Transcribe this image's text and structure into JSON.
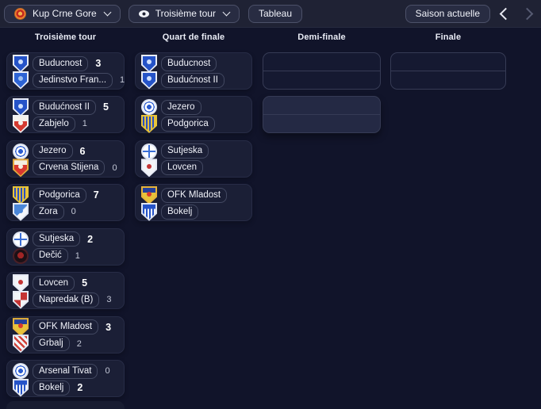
{
  "topbar": {
    "competition_selector": {
      "label": "Kup Crne Gore"
    },
    "round_selector": {
      "label": "Troisième tour"
    },
    "table_button": "Tableau",
    "season_button": "Saison actuelle",
    "prev_enabled": true,
    "next_enabled": false
  },
  "colors": {
    "page_bg": "#11142a",
    "topbar_bg": "#1f2234",
    "card_bg": "#1b1f36",
    "pill_border": "#424861",
    "empty_highlight_bg": "#242944",
    "winner_score": "#ffffff",
    "loser_score": "#c3c7d6"
  },
  "badges": {
    "buducnost": {
      "shape": "shield",
      "outline": "#e9edf8",
      "pattern": "solid",
      "colors": [
        "#2553c8",
        "#cfe0ff"
      ],
      "dot": "#cfe0ff"
    },
    "jedinstvo": {
      "shape": "shield",
      "outline": "#e9edf8",
      "pattern": "solid",
      "colors": [
        "#2d63d4",
        "#9fc0f0"
      ],
      "dot": "#9fc0f0"
    },
    "zabjelo": {
      "shape": "shield",
      "outline": "#f0f0f2",
      "pattern": "band-top",
      "colors": [
        "#d43a31",
        "#f5f2ee"
      ],
      "dot": "#f5f2ee"
    },
    "jezero": {
      "shape": "circle",
      "outline": "#dfe5f2",
      "pattern": "ring-dot",
      "colors": [
        "#ffffff",
        "#2b5cd0"
      ]
    },
    "crvena_stijena": {
      "shape": "shield",
      "outline": "#e2a83c",
      "pattern": "band-top",
      "colors": [
        "#d8382f",
        "#f3efe2"
      ],
      "dot": "#f3efe2"
    },
    "podgorica": {
      "shape": "shield",
      "outline": "#e7c33a",
      "pattern": "stripes-v",
      "colors": [
        "#e7c33a",
        "#2b4fc0"
      ]
    },
    "zora": {
      "shape": "shield",
      "outline": "#dfe5f2",
      "pattern": "half-diag",
      "colors": [
        "#f4f6fb",
        "#4a86d8"
      ],
      "dot": "#4a86d8"
    },
    "sutjeska": {
      "shape": "circle",
      "outline": "#dfe5f2",
      "pattern": "globe",
      "colors": [
        "#ffffff",
        "#3b6fd6"
      ]
    },
    "decic": {
      "shape": "circle",
      "outline": "#4a1f26",
      "pattern": "dark-dot",
      "colors": [
        "#1c1016",
        "#a02525"
      ]
    },
    "lovcen": {
      "shape": "shield",
      "outline": "#e5e9f4",
      "pattern": "solid",
      "colors": [
        "#f2f4f8",
        "#c43434"
      ],
      "dot": "#c43434"
    },
    "napredak": {
      "shape": "shield",
      "outline": "#e5e9f4",
      "pattern": "quarter",
      "colors": [
        "#f2f4f8",
        "#c43434"
      ]
    },
    "ofk_mladost": {
      "shape": "shield",
      "outline": "#e7b33a",
      "pattern": "band-top",
      "colors": [
        "#e7c33a",
        "#23409c"
      ],
      "dot": "#d8382f"
    },
    "grbalj": {
      "shape": "shield",
      "outline": "#e5e9f4",
      "pattern": "stripes-diag",
      "colors": [
        "#f2f4f8",
        "#d04038"
      ]
    },
    "arsenal_tivat": {
      "shape": "circle",
      "outline": "#dfe5f2",
      "pattern": "ring-dot",
      "colors": [
        "#ffffff",
        "#2b5cd0"
      ]
    },
    "bokelj": {
      "shape": "shield",
      "outline": "#dfe5f2",
      "pattern": "chief-stripes",
      "colors": [
        "#f2f4f8",
        "#2553c8"
      ]
    }
  },
  "bracket": {
    "rounds": [
      {
        "label": "Troisième tour",
        "matches": [
          {
            "teams": [
              {
                "name": "Buducnost",
                "score": "3",
                "winner": true,
                "badge": "buducnost"
              },
              {
                "name": "Jedinstvo Fran...",
                "score": "1",
                "winner": false,
                "badge": "jedinstvo"
              }
            ]
          },
          {
            "teams": [
              {
                "name": "Budućnost II",
                "score": "5",
                "winner": true,
                "badge": "buducnost"
              },
              {
                "name": "Zabjelo",
                "score": "1",
                "winner": false,
                "badge": "zabjelo"
              }
            ]
          },
          {
            "teams": [
              {
                "name": "Jezero",
                "score": "6",
                "winner": true,
                "badge": "jezero"
              },
              {
                "name": "Crvena Stijena",
                "score": "0",
                "winner": false,
                "badge": "crvena_stijena"
              }
            ]
          },
          {
            "teams": [
              {
                "name": "Podgorica",
                "score": "7",
                "winner": true,
                "badge": "podgorica"
              },
              {
                "name": "Zora",
                "score": "0",
                "winner": false,
                "badge": "zora"
              }
            ]
          },
          {
            "teams": [
              {
                "name": "Sutjeska",
                "score": "2",
                "winner": true,
                "badge": "sutjeska"
              },
              {
                "name": "Dečić",
                "score": "1",
                "winner": false,
                "badge": "decic"
              }
            ]
          },
          {
            "teams": [
              {
                "name": "Lovcen",
                "score": "5",
                "winner": true,
                "badge": "lovcen"
              },
              {
                "name": "Napredak (B)",
                "score": "3",
                "winner": false,
                "badge": "napredak"
              }
            ]
          },
          {
            "teams": [
              {
                "name": "OFK Mladost",
                "score": "3",
                "winner": true,
                "badge": "ofk_mladost"
              },
              {
                "name": "Grbalj",
                "score": "2",
                "winner": false,
                "badge": "grbalj"
              }
            ]
          },
          {
            "teams": [
              {
                "name": "Arsenal Tivat",
                "score": "0",
                "winner": false,
                "badge": "arsenal_tivat"
              },
              {
                "name": "Bokelj",
                "score": "2",
                "winner": true,
                "badge": "bokelj"
              }
            ]
          }
        ]
      },
      {
        "label": "Quart de finale",
        "matches": [
          {
            "teams": [
              {
                "name": "Buducnost",
                "badge": "buducnost"
              },
              {
                "name": "Budućnost II",
                "badge": "buducnost"
              }
            ]
          },
          {
            "teams": [
              {
                "name": "Jezero",
                "badge": "jezero"
              },
              {
                "name": "Podgorica",
                "badge": "podgorica"
              }
            ]
          },
          {
            "teams": [
              {
                "name": "Sutjeska",
                "badge": "sutjeska"
              },
              {
                "name": "Lovcen",
                "badge": "lovcen"
              }
            ]
          },
          {
            "teams": [
              {
                "name": "OFK Mladost",
                "badge": "ofk_mladost"
              },
              {
                "name": "Bokelj",
                "badge": "bokelj"
              }
            ]
          }
        ]
      },
      {
        "label": "Demi-finale",
        "matches": [
          {
            "empty": true
          },
          {
            "empty": true,
            "highlighted": true
          }
        ]
      },
      {
        "label": "Finale",
        "matches": [
          {
            "empty": true
          }
        ]
      }
    ]
  }
}
